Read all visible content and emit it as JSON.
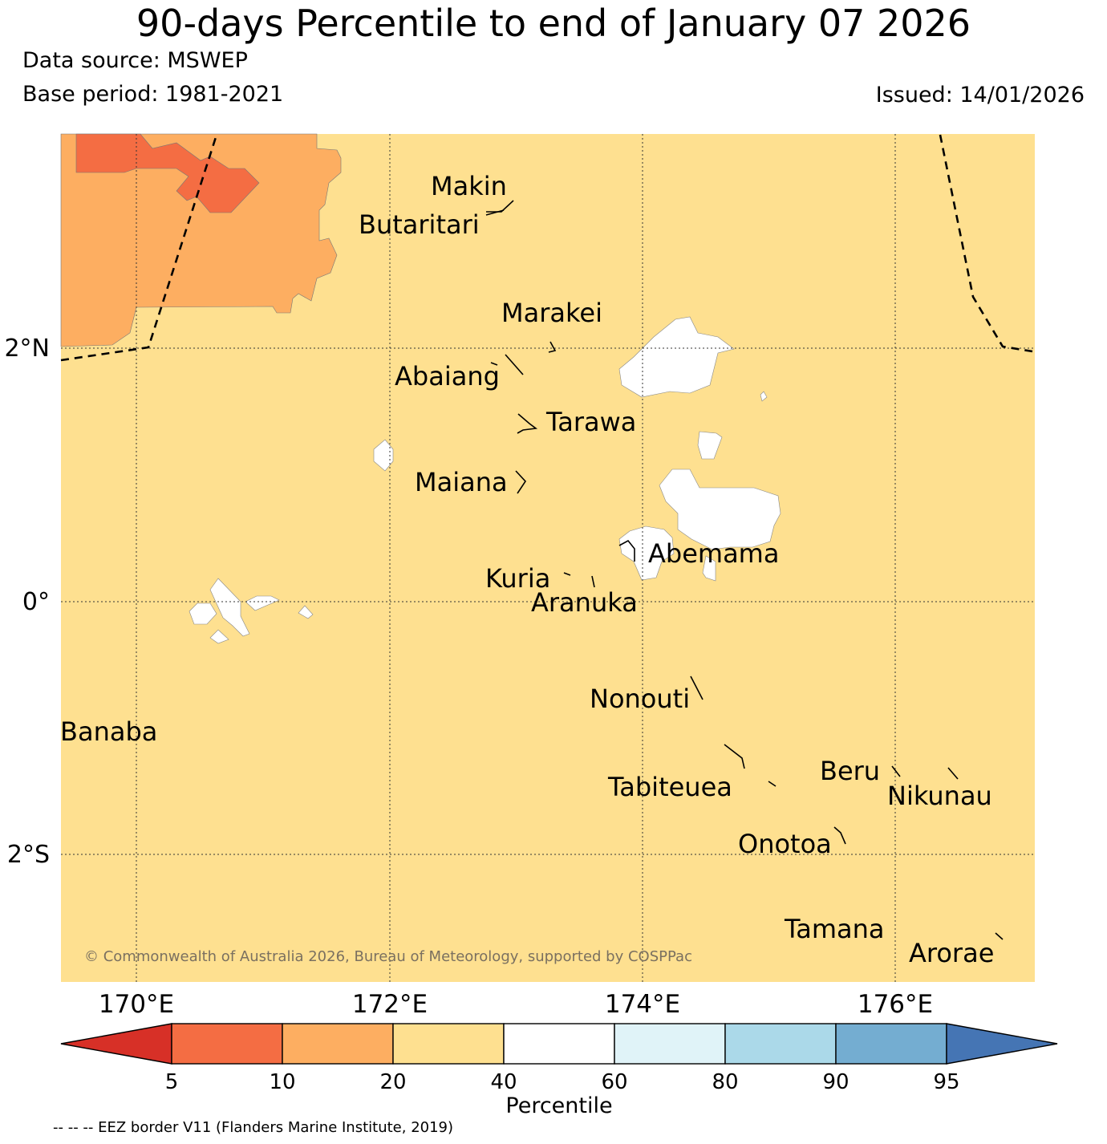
{
  "header": {
    "title": "90-days Percentile to end of January 07 2026",
    "data_source": "Data source: MSWEP",
    "base_period": "Base period: 1981-2021",
    "issued": "Issued: 14/01/2026"
  },
  "map": {
    "background_category": "20-40",
    "latitude_labels": [
      "2°N",
      "0°",
      "2°S"
    ],
    "longitude_labels": [
      "170°E",
      "172°E",
      "174°E",
      "176°E"
    ],
    "places": [
      "Makin",
      "Butaritari",
      "Marakei",
      "Abaiang",
      "Tarawa",
      "Maiana",
      "Abemama",
      "Kuria",
      "Aranuka",
      "Nonouti",
      "Banaba",
      "Beru",
      "Tabiteuea",
      "Nikunau",
      "Onotoa",
      "Tamana",
      "Arorae"
    ],
    "copyright": "© Commonwealth of Australia 2026, Bureau of Meteorology, supported by COSPPac"
  },
  "colorbar": {
    "title": "Percentile",
    "ticks": [
      "5",
      "10",
      "20",
      "40",
      "60",
      "80",
      "90",
      "95"
    ],
    "colors": [
      "#d73027",
      "#f46d43",
      "#fdae61",
      "#fee090",
      "#ffffff",
      "#e0f3f8",
      "#abd9e9",
      "#74add1",
      "#4575b4"
    ]
  },
  "footnote": "-- -- -- EEZ border V11 (Flanders Marine Institute, 2019)",
  "colors": {
    "p20_40": "#fee090",
    "p10_20": "#fdae61",
    "p5_10": "#f46d43",
    "p40_60": "#ffffff"
  }
}
